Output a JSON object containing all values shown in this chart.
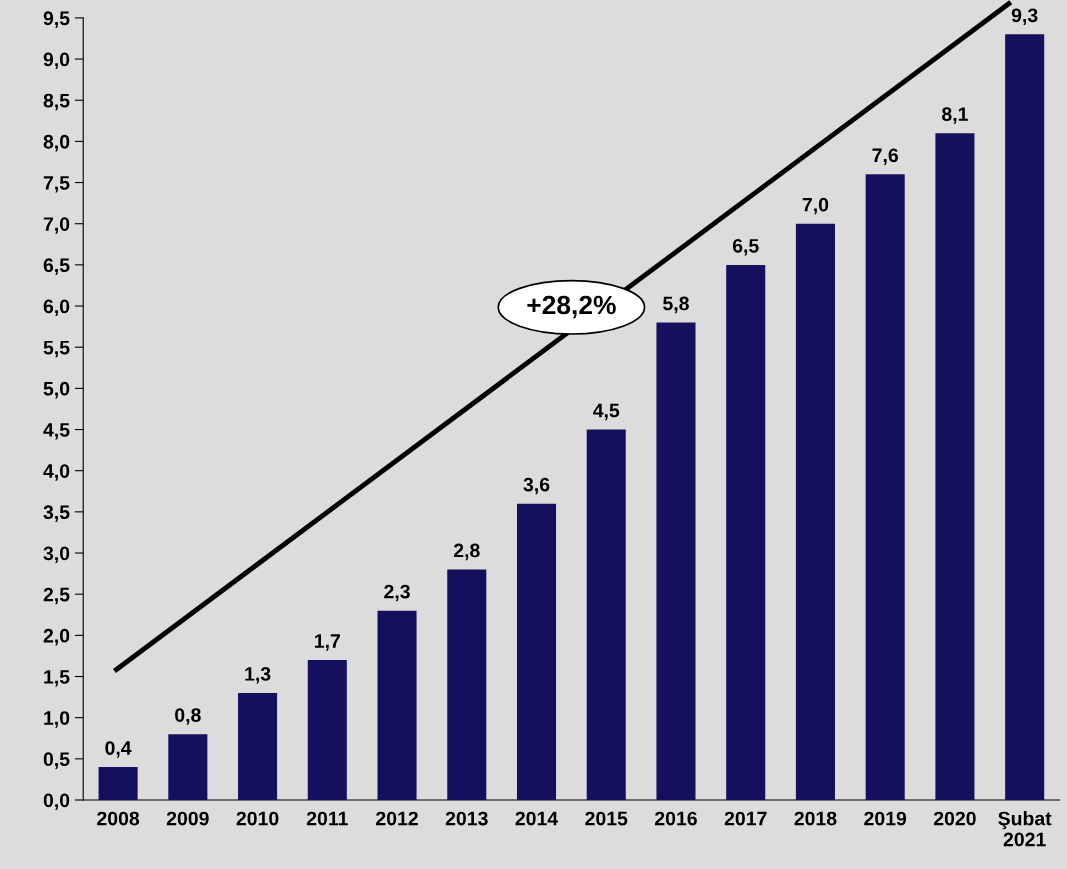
{
  "chart_data": {
    "type": "bar",
    "categories": [
      "2008",
      "2009",
      "2010",
      "2011",
      "2012",
      "2013",
      "2014",
      "2015",
      "2016",
      "2017",
      "2018",
      "2019",
      "2020",
      "Şubat\n2021"
    ],
    "values": [
      0.4,
      0.8,
      1.3,
      1.7,
      2.3,
      2.8,
      3.6,
      4.5,
      5.8,
      6.5,
      7.0,
      7.6,
      8.1,
      9.3
    ],
    "value_labels": [
      "0,4",
      "0,8",
      "1,3",
      "1,7",
      "2,3",
      "2,8",
      "3,6",
      "4,5",
      "5,8",
      "6,5",
      "7,0",
      "7,6",
      "8,1",
      "9,3"
    ],
    "color": "#14105e",
    "ylim": [
      0,
      9.5
    ],
    "yticks": [
      {
        "value": 0,
        "label": "0,0"
      },
      {
        "value": 0.5,
        "label": "0,5"
      },
      {
        "value": 1,
        "label": "1,0"
      },
      {
        "value": 1.5,
        "label": "1,5"
      },
      {
        "value": 2,
        "label": "2,0"
      },
      {
        "value": 2.5,
        "label": "2,5"
      },
      {
        "value": 3,
        "label": "3,0"
      },
      {
        "value": 3.5,
        "label": "3,5"
      },
      {
        "value": 4,
        "label": "4,0"
      },
      {
        "value": 4.5,
        "label": "4,5"
      },
      {
        "value": 5,
        "label": "5,0"
      },
      {
        "value": 5.5,
        "label": "5,5"
      },
      {
        "value": 6,
        "label": "6,0"
      },
      {
        "value": 6.5,
        "label": "6,5"
      },
      {
        "value": 7,
        "label": "7,0"
      },
      {
        "value": 7.5,
        "label": "7,5"
      },
      {
        "value": 8,
        "label": "8,0"
      },
      {
        "value": 8.5,
        "label": "8,5"
      },
      {
        "value": 9,
        "label": "9,0"
      },
      {
        "value": 9.5,
        "label": "9,5"
      }
    ],
    "annotations": [
      "+28,2%"
    ],
    "grid": false
  }
}
